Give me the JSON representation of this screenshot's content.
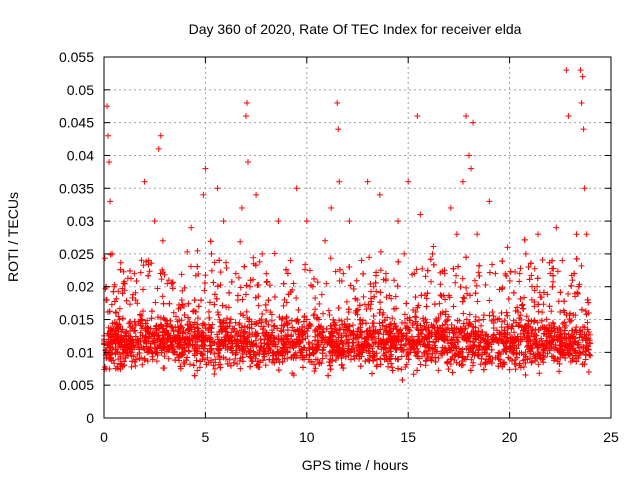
{
  "chart_data": {
    "type": "scatter",
    "title": "Day 360 of 2020, Rate Of TEC Index for receiver elda",
    "xlabel": "GPS time / hours",
    "ylabel": "ROTI / TECUs",
    "xlim": [
      0,
      25
    ],
    "ylim": [
      0,
      0.055
    ],
    "xticks": [
      0,
      5,
      10,
      15,
      20,
      25
    ],
    "xtick_labels": [
      "0",
      "5",
      "10",
      "15",
      "20",
      "25"
    ],
    "yticks": [
      0,
      0.005,
      0.01,
      0.015,
      0.02,
      0.025,
      0.03,
      0.035,
      0.04,
      0.045,
      0.05,
      0.055
    ],
    "ytick_labels": [
      "0",
      "0.005",
      "0.01",
      "0.015",
      "0.02",
      "0.025",
      "0.03",
      "0.035",
      "0.04",
      "0.045",
      "0.05",
      "0.055"
    ],
    "grid": true,
    "marker": "+",
    "color": "#ff0000",
    "series": [
      {
        "name": "ROTI",
        "x": [
          0.0,
          0.1,
          0.15,
          0.2,
          0.25,
          0.3,
          0.4,
          0.5,
          0.6,
          0.8,
          1.0,
          1.2,
          1.5,
          1.8,
          2.0,
          2.2,
          2.5,
          2.7,
          2.8,
          2.9,
          3.0,
          3.2,
          3.5,
          3.8,
          4.0,
          4.3,
          4.6,
          4.9,
          5.0,
          5.3,
          5.6,
          5.9,
          6.2,
          6.5,
          6.8,
          7.0,
          7.05,
          7.1,
          7.2,
          7.5,
          7.8,
          8.0,
          8.3,
          8.6,
          8.9,
          9.2,
          9.5,
          9.8,
          10.0,
          10.3,
          10.6,
          10.9,
          11.2,
          11.5,
          11.55,
          11.6,
          11.8,
          12.1,
          12.4,
          12.7,
          13.0,
          13.3,
          13.6,
          13.9,
          14.2,
          14.5,
          14.8,
          15.0,
          15.3,
          15.45,
          15.6,
          15.9,
          16.2,
          16.5,
          16.8,
          17.1,
          17.4,
          17.7,
          17.85,
          18.0,
          18.1,
          18.2,
          18.4,
          18.7,
          19.0,
          19.3,
          19.6,
          19.9,
          20.2,
          20.5,
          20.8,
          21.1,
          21.4,
          21.7,
          22.0,
          22.3,
          22.6,
          22.8,
          22.9,
          23.1,
          23.3,
          23.5,
          23.55,
          23.6,
          23.65,
          23.7,
          23.8,
          23.9
        ],
        "y": [
          0.012,
          0.018,
          0.0475,
          0.043,
          0.039,
          0.033,
          0.025,
          0.02,
          0.016,
          0.014,
          0.012,
          0.011,
          0.022,
          0.013,
          0.036,
          0.024,
          0.03,
          0.041,
          0.043,
          0.027,
          0.015,
          0.021,
          0.012,
          0.014,
          0.013,
          0.029,
          0.012,
          0.034,
          0.038,
          0.025,
          0.035,
          0.03,
          0.014,
          0.022,
          0.032,
          0.046,
          0.048,
          0.039,
          0.02,
          0.034,
          0.025,
          0.022,
          0.013,
          0.03,
          0.018,
          0.024,
          0.035,
          0.012,
          0.03,
          0.02,
          0.015,
          0.027,
          0.032,
          0.048,
          0.044,
          0.036,
          0.022,
          0.03,
          0.016,
          0.024,
          0.036,
          0.02,
          0.034,
          0.022,
          0.012,
          0.03,
          0.025,
          0.036,
          0.022,
          0.046,
          0.031,
          0.017,
          0.025,
          0.013,
          0.022,
          0.032,
          0.028,
          0.036,
          0.046,
          0.04,
          0.038,
          0.045,
          0.028,
          0.015,
          0.033,
          0.022,
          0.016,
          0.026,
          0.012,
          0.022,
          0.025,
          0.018,
          0.028,
          0.011,
          0.022,
          0.029,
          0.024,
          0.053,
          0.046,
          0.021,
          0.028,
          0.053,
          0.048,
          0.052,
          0.044,
          0.035,
          0.028,
          0.016
        ]
      }
    ]
  }
}
